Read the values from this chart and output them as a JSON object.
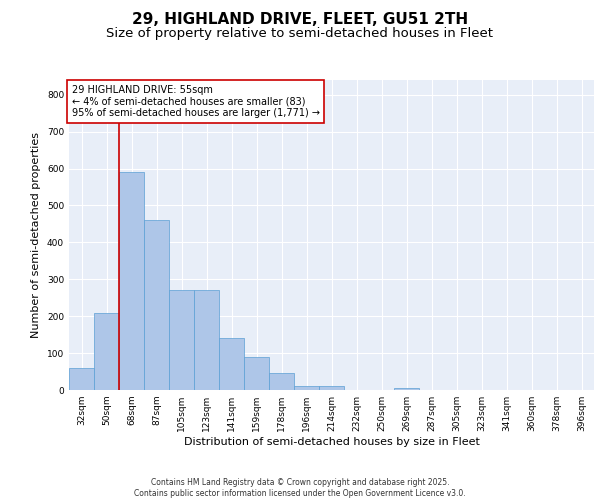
{
  "title": "29, HIGHLAND DRIVE, FLEET, GU51 2TH",
  "subtitle": "Size of property relative to semi-detached houses in Fleet",
  "xlabel": "Distribution of semi-detached houses by size in Fleet",
  "ylabel": "Number of semi-detached properties",
  "categories": [
    "32sqm",
    "50sqm",
    "68sqm",
    "87sqm",
    "105sqm",
    "123sqm",
    "141sqm",
    "159sqm",
    "178sqm",
    "196sqm",
    "214sqm",
    "232sqm",
    "250sqm",
    "269sqm",
    "287sqm",
    "305sqm",
    "323sqm",
    "341sqm",
    "360sqm",
    "378sqm",
    "396sqm"
  ],
  "values": [
    60,
    210,
    590,
    460,
    270,
    270,
    140,
    90,
    45,
    10,
    10,
    0,
    0,
    5,
    0,
    0,
    0,
    0,
    0,
    0,
    0
  ],
  "bar_color": "#aec6e8",
  "bar_edge_color": "#5a9fd4",
  "ref_line_color": "#cc0000",
  "ref_line_x": 1.5,
  "annotation_text": "29 HIGHLAND DRIVE: 55sqm\n← 4% of semi-detached houses are smaller (83)\n95% of semi-detached houses are larger (1,771) →",
  "annotation_box_color": "#cc0000",
  "ylim": [
    0,
    840
  ],
  "yticks": [
    0,
    100,
    200,
    300,
    400,
    500,
    600,
    700,
    800
  ],
  "background_color": "#e8eef8",
  "grid_color": "#ffffff",
  "footer_line1": "Contains HM Land Registry data © Crown copyright and database right 2025.",
  "footer_line2": "Contains public sector information licensed under the Open Government Licence v3.0.",
  "title_fontsize": 11,
  "subtitle_fontsize": 9.5,
  "tick_fontsize": 6.5,
  "ylabel_fontsize": 8,
  "xlabel_fontsize": 8,
  "annotation_fontsize": 7,
  "footer_fontsize": 5.5
}
